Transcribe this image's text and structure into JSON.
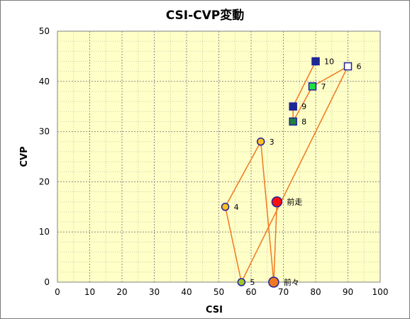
{
  "chart_data": {
    "type": "scatter",
    "title": "CSI-CVP変動",
    "xlabel": "CSI",
    "ylabel": "CVP",
    "xlim": [
      0,
      100
    ],
    "ylim": [
      0,
      50
    ],
    "x_ticks": [
      0,
      10,
      20,
      30,
      40,
      50,
      60,
      70,
      80,
      90,
      100
    ],
    "y_ticks": [
      0,
      10,
      20,
      30,
      40,
      50
    ],
    "grid": true,
    "line_color": "#f07820",
    "plot_background": "#ffffc8",
    "points": [
      {
        "label": "前走",
        "x": 68,
        "y": 16,
        "marker": "circle-large",
        "fill": "#ff1010",
        "stroke": "#2020a0"
      },
      {
        "label": "前々",
        "x": 67,
        "y": 0,
        "marker": "circle-large",
        "fill": "#f07820",
        "stroke": "#2020a0"
      },
      {
        "label": "3",
        "x": 63,
        "y": 28,
        "marker": "circle",
        "fill": "#ffc020",
        "stroke": "#2020a0"
      },
      {
        "label": "4",
        "x": 52,
        "y": 15,
        "marker": "circle",
        "fill": "#ffc020",
        "stroke": "#2020a0"
      },
      {
        "label": "5",
        "x": 57,
        "y": 0,
        "marker": "circle",
        "fill": "#a0c820",
        "stroke": "#2020a0"
      },
      {
        "label": "6",
        "x": 90,
        "y": 43,
        "marker": "square",
        "fill": "#ffffff",
        "stroke": "#2020a0"
      },
      {
        "label": "7",
        "x": 79,
        "y": 39,
        "marker": "square",
        "fill": "#20e040",
        "stroke": "#2020a0"
      },
      {
        "label": "8",
        "x": 73,
        "y": 32,
        "marker": "square",
        "fill": "#208040",
        "stroke": "#2020a0"
      },
      {
        "label": "9",
        "x": 73,
        "y": 35,
        "marker": "square",
        "fill": "#1a2a90",
        "stroke": "#2020a0"
      },
      {
        "label": "10",
        "x": 80,
        "y": 44,
        "marker": "square",
        "fill": "#1a2a90",
        "stroke": "#2020a0"
      }
    ]
  }
}
